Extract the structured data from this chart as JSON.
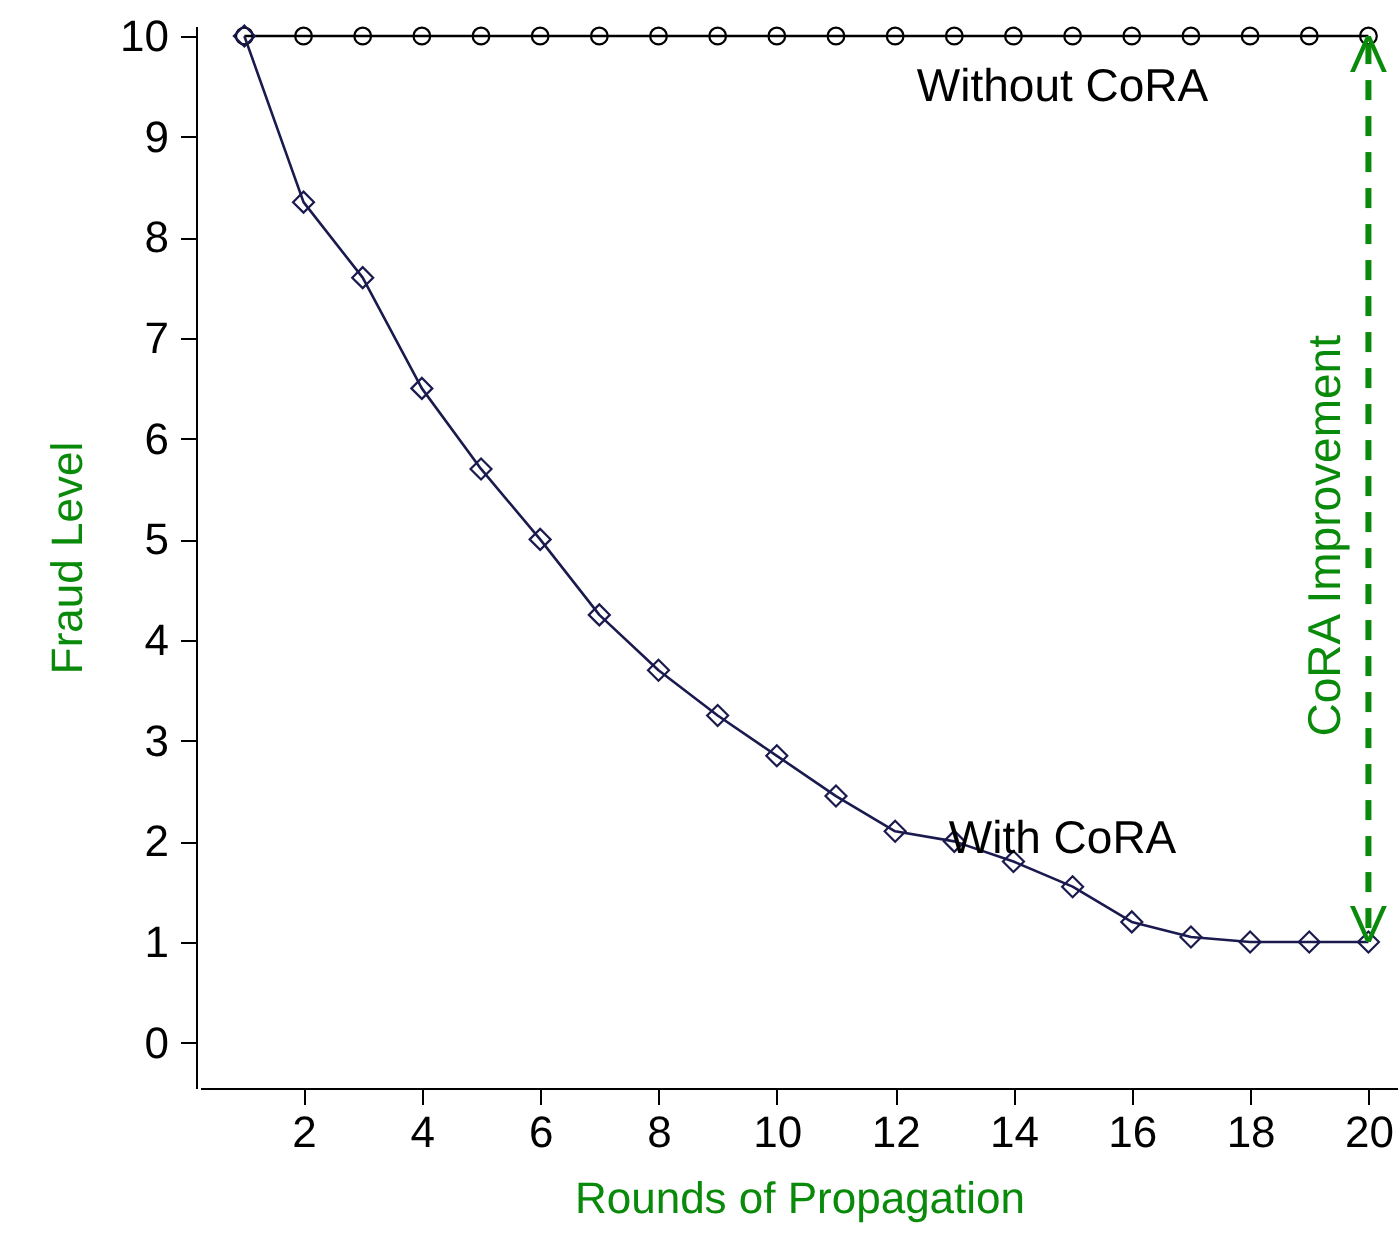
{
  "chart_data": {
    "type": "line",
    "xlabel": "Rounds of Propagation",
    "ylabel": "Fraud Level",
    "x": [
      1,
      2,
      3,
      4,
      5,
      6,
      7,
      8,
      9,
      10,
      11,
      12,
      13,
      14,
      15,
      16,
      17,
      18,
      19,
      20
    ],
    "series": [
      {
        "color": "#000000",
        "marker": "circle",
        "values": [
          10,
          10,
          10,
          10,
          10,
          10,
          10,
          10,
          10,
          10,
          10,
          10,
          10,
          10,
          10,
          10,
          10,
          10,
          10,
          10
        ]
      },
      {
        "color": "#1a1a4e",
        "marker": "diamond",
        "values": [
          10,
          8.35,
          7.6,
          6.5,
          5.7,
          5.0,
          4.25,
          3.7,
          3.25,
          2.85,
          2.45,
          2.1,
          2.0,
          1.8,
          1.55,
          1.2,
          1.05,
          1,
          1,
          1
        ]
      }
    ],
    "xlim": [
      0.25,
      20.5
    ],
    "ylim": [
      -0.45,
      10.1
    ],
    "xticks": [
      2,
      4,
      6,
      8,
      10,
      12,
      14,
      16,
      18,
      20
    ],
    "yticks": [
      0,
      1,
      2,
      3,
      4,
      5,
      6,
      7,
      8,
      9,
      10
    ],
    "line_style": "solid",
    "annotations": [
      "Without CoRA",
      "With CoRA",
      "CoRA Improvement"
    ]
  }
}
